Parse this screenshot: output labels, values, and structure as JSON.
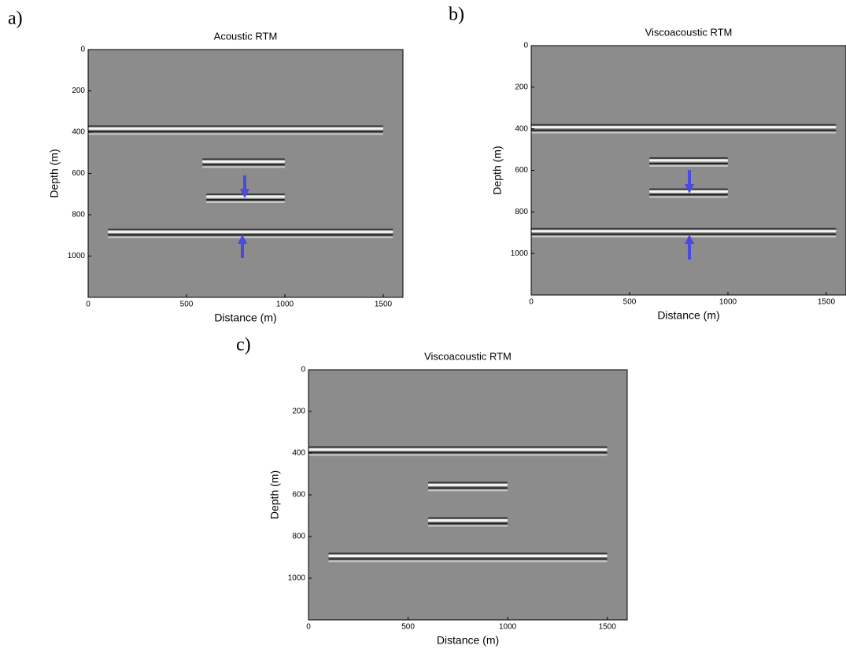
{
  "chart_data": [
    {
      "type": "image",
      "label": "a)",
      "title": "Acoustic RTM",
      "xlabel": "Distance (m)",
      "ylabel": "Depth (m)",
      "xlim": [
        0,
        1600
      ],
      "ylim": [
        0,
        1200
      ],
      "y_inverted": true,
      "xticks": [
        0,
        500,
        1000,
        1500
      ],
      "yticks": [
        0,
        200,
        400,
        600,
        800,
        1000
      ],
      "reflectors": [
        {
          "depth": 390,
          "x": [
            0,
            1500
          ]
        },
        {
          "depth": 550,
          "x": [
            580,
            1000
          ]
        },
        {
          "depth": 720,
          "x": [
            600,
            1000
          ]
        },
        {
          "depth": 890,
          "x": [
            100,
            1550
          ]
        }
      ]
    },
    {
      "type": "image",
      "label": "b)",
      "title": "Viscoacoustic RTM",
      "xlabel": "Distance (m)",
      "ylabel": "Depth (m)",
      "xlim": [
        0,
        1600
      ],
      "ylim": [
        0,
        1200
      ],
      "y_inverted": true,
      "xticks": [
        0,
        500,
        1000,
        1500
      ],
      "yticks": [
        0,
        200,
        400,
        600,
        800,
        1000
      ],
      "reflectors": [
        {
          "depth": 400,
          "x": [
            0,
            1550
          ]
        },
        {
          "depth": 560,
          "x": [
            600,
            1000
          ]
        },
        {
          "depth": 710,
          "x": [
            600,
            1000
          ]
        },
        {
          "depth": 900,
          "x": [
            0,
            1550
          ]
        }
      ]
    },
    {
      "type": "image",
      "label": "c)",
      "title": "Viscoacoustic RTM",
      "xlabel": "Distance (m)",
      "ylabel": "Depth (m)",
      "xlim": [
        0,
        1600
      ],
      "ylim": [
        0,
        1200
      ],
      "y_inverted": true,
      "xticks": [
        0,
        500,
        1000,
        1500
      ],
      "yticks": [
        0,
        200,
        400,
        600,
        800,
        1000
      ],
      "reflectors": [
        {
          "depth": 390,
          "x": [
            0,
            1500
          ]
        },
        {
          "depth": 560,
          "x": [
            600,
            1000
          ]
        },
        {
          "depth": 730,
          "x": [
            600,
            1000
          ]
        },
        {
          "depth": 900,
          "x": [
            100,
            1500
          ]
        }
      ]
    }
  ]
}
